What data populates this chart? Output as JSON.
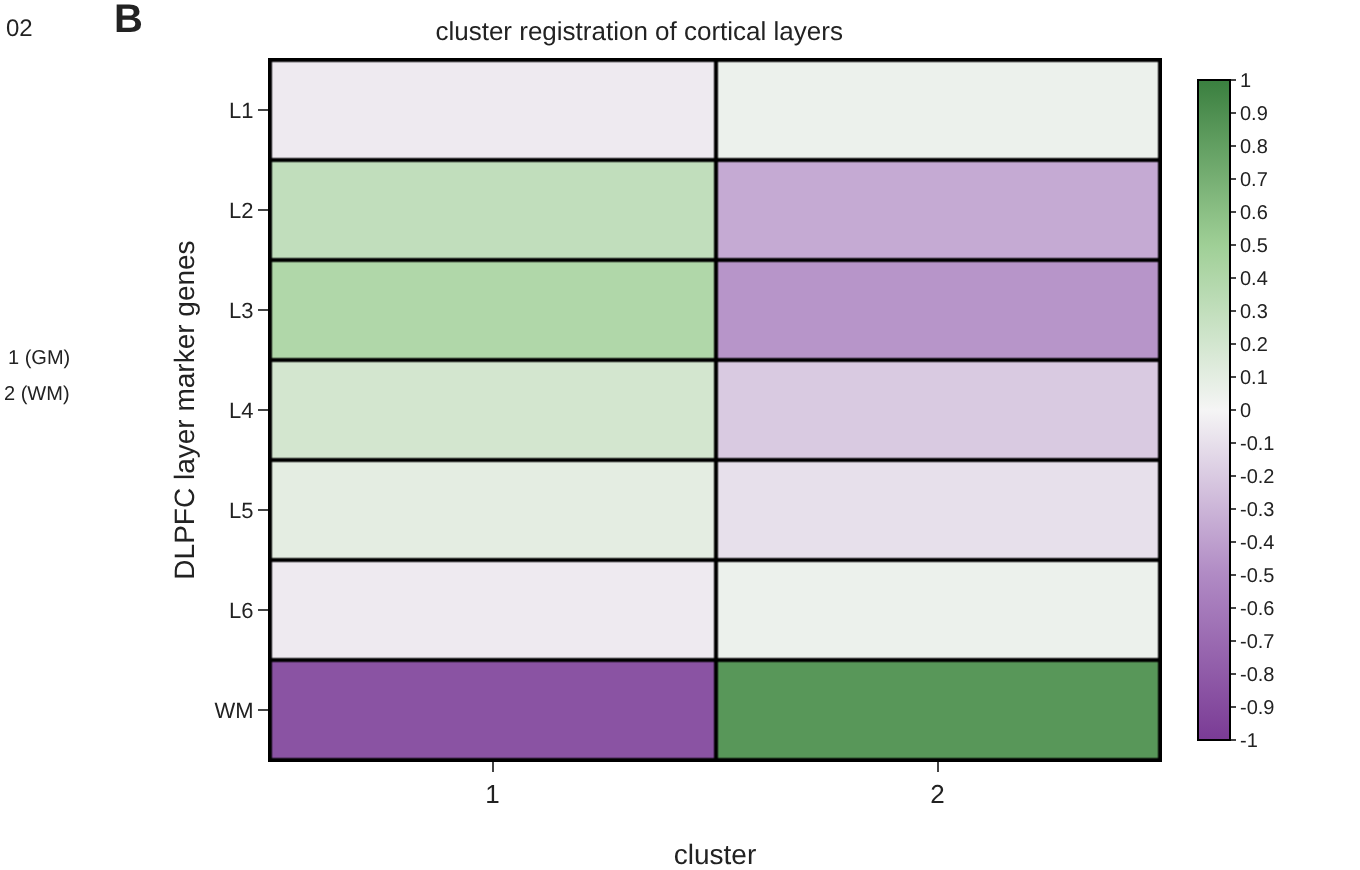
{
  "chart_data": {
    "type": "heatmap",
    "title": "cluster registration of cortical layers",
    "xlabel": "cluster",
    "ylabel": "DLPFC layer marker genes",
    "categories": [
      "1",
      "2"
    ],
    "y_categories": [
      "L1",
      "L2",
      "L3",
      "L4",
      "L5",
      "L6",
      "WM"
    ],
    "cells": [
      [
        -0.05,
        0.05
      ],
      [
        0.3,
        -0.35
      ],
      [
        0.4,
        -0.45
      ],
      [
        0.2,
        -0.2
      ],
      [
        0.1,
        -0.1
      ],
      [
        -0.05,
        0.05
      ],
      [
        -0.85,
        0.85
      ]
    ],
    "clim": [
      -1,
      1
    ],
    "cticks": [
      1,
      0.9,
      0.8,
      0.7,
      0.6,
      0.5,
      0.4,
      0.3,
      0.2,
      0.1,
      0,
      -0.1,
      -0.2,
      -0.3,
      -0.4,
      -0.5,
      -0.6,
      -0.7,
      -0.8,
      -0.9,
      -1
    ],
    "annotations": [
      "B",
      "02",
      "1 (GM)",
      "2 (WM)"
    ]
  }
}
